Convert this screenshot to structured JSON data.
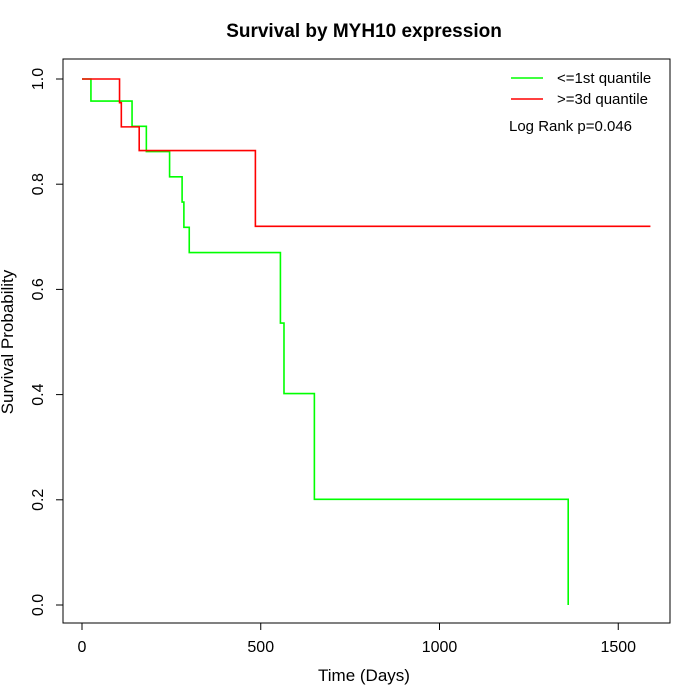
{
  "chart_data": {
    "type": "line",
    "title": "Survival by MYH10 expression",
    "xlabel": "Time (Days)",
    "ylabel": "Survival Probability",
    "xlim": [
      0,
      1650
    ],
    "ylim": [
      0,
      1.0
    ],
    "x_ticks": [
      0,
      500,
      1000,
      1500
    ],
    "x_tick_labels": [
      "0",
      "500",
      "1000",
      "1500"
    ],
    "y_ticks": [
      0,
      0.2,
      0.4,
      0.6,
      0.8,
      1.0
    ],
    "y_tick_labels": [
      "0.0",
      "0.2",
      "0.4",
      "0.6",
      "0.8",
      "1.0"
    ],
    "grid": false,
    "legend_position": "top-right",
    "annotation": "Log Rank p=0.046",
    "series": [
      {
        "name": "<=1st quantile",
        "color": "#00ff00",
        "step": true,
        "x": [
          0,
          25,
          140,
          180,
          245,
          280,
          285,
          300,
          555,
          565,
          650,
          1360,
          1360
        ],
        "y": [
          1.0,
          0.958,
          0.91,
          0.862,
          0.814,
          0.766,
          0.718,
          0.67,
          0.536,
          0.402,
          0.201,
          0.201,
          0.0
        ]
      },
      {
        "name": ">=3d quantile",
        "color": "#ff0000",
        "step": true,
        "x": [
          0,
          105,
          110,
          160,
          485,
          1590
        ],
        "y": [
          1.0,
          0.955,
          0.909,
          0.864,
          0.72,
          0.72
        ]
      }
    ]
  }
}
